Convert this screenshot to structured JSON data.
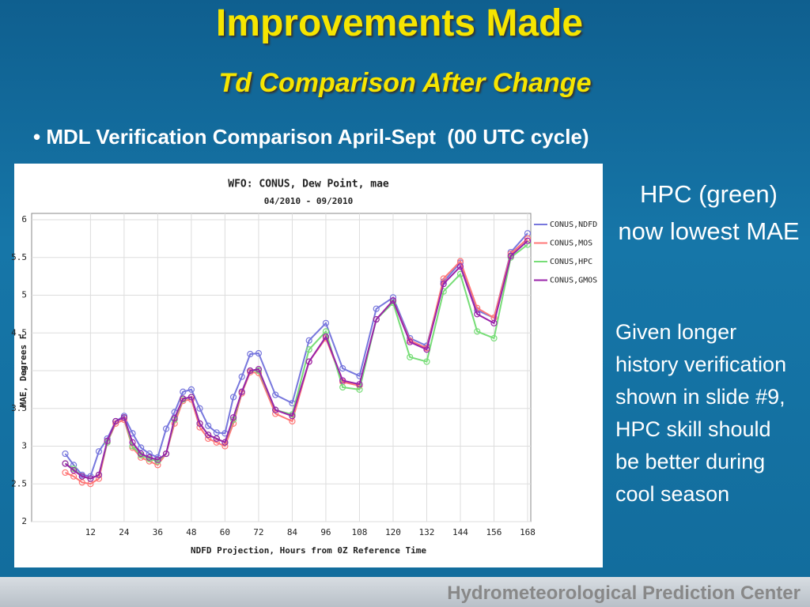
{
  "slide": {
    "title": "Improvements Made",
    "subtitle": "Td Comparison After Change",
    "bullet": "MDL Verification Comparison April-Sept  (00 UTC cycle)",
    "note1": "HPC (green) now  lowest MAE",
    "note2": "Given longer history verification shown in slide #9, HPC skill should be better during cool season",
    "footer": "Hydrometeorological Prediction Center"
  },
  "chart_data": {
    "type": "line",
    "title": "WFO: CONUS, Dew Point, mae",
    "subtitle": "04/2010 - 09/2010",
    "x_label": "NDFD Projection, Hours from 0Z Reference Time",
    "y_label": "MAE, Degrees F",
    "x": [
      3,
      6,
      9,
      12,
      15,
      18,
      21,
      24,
      27,
      30,
      33,
      36,
      39,
      42,
      45,
      48,
      51,
      54,
      57,
      60,
      63,
      66,
      69,
      72,
      78,
      84,
      90,
      96,
      102,
      108,
      114,
      120,
      126,
      132,
      138,
      144,
      150,
      156,
      162,
      168
    ],
    "series": [
      {
        "name": "CONUS,NDFD",
        "color": "#7777dd",
        "values": [
          2.9,
          2.75,
          2.62,
          2.6,
          2.93,
          3.1,
          3.33,
          3.4,
          3.17,
          2.98,
          2.9,
          2.85,
          3.23,
          3.45,
          3.72,
          3.75,
          3.5,
          3.27,
          3.18,
          3.17,
          3.65,
          3.92,
          4.22,
          4.23,
          3.68,
          3.57,
          4.4,
          4.63,
          4.03,
          3.93,
          4.82,
          4.97,
          4.43,
          4.33,
          5.18,
          5.43,
          4.8,
          4.7,
          5.57,
          5.82
        ]
      },
      {
        "name": "CONUS,MOS",
        "color": "#ff7777",
        "values": [
          2.65,
          2.6,
          2.52,
          2.5,
          2.57,
          3.05,
          3.3,
          3.35,
          2.98,
          2.85,
          2.8,
          2.75,
          2.9,
          3.3,
          3.6,
          3.62,
          3.25,
          3.1,
          3.05,
          3.0,
          3.3,
          3.7,
          3.98,
          3.97,
          3.43,
          3.33,
          4.12,
          4.43,
          3.85,
          3.8,
          4.68,
          4.93,
          4.4,
          4.3,
          5.22,
          5.45,
          4.83,
          4.7,
          5.55,
          5.75
        ]
      },
      {
        "name": "CONUS,HPC",
        "color": "#77dd77",
        "values": [
          2.77,
          2.7,
          2.6,
          2.57,
          2.62,
          3.05,
          3.33,
          3.38,
          3.0,
          2.88,
          2.83,
          2.8,
          2.9,
          3.35,
          3.62,
          3.65,
          3.3,
          3.15,
          3.1,
          3.05,
          3.35,
          3.72,
          4.0,
          4.0,
          3.48,
          3.42,
          4.28,
          4.52,
          3.78,
          3.75,
          4.68,
          4.9,
          4.18,
          4.12,
          5.05,
          5.28,
          4.52,
          4.43,
          5.5,
          5.67
        ]
      },
      {
        "name": "CONUS,GMOS",
        "color": "#9922aa",
        "values": [
          2.77,
          2.68,
          2.6,
          2.57,
          2.62,
          3.07,
          3.33,
          3.38,
          3.05,
          2.9,
          2.85,
          2.82,
          2.9,
          3.37,
          3.63,
          3.65,
          3.3,
          3.15,
          3.1,
          3.05,
          3.38,
          3.72,
          4.0,
          4.02,
          3.48,
          3.4,
          4.12,
          4.45,
          3.87,
          3.82,
          4.68,
          4.93,
          4.38,
          4.28,
          5.15,
          5.38,
          4.75,
          4.63,
          5.52,
          5.72
        ]
      }
    ],
    "xlim": [
      -9,
      168
    ],
    "xticks": [
      12,
      24,
      36,
      48,
      60,
      72,
      84,
      96,
      108,
      120,
      132,
      144,
      156,
      168
    ],
    "ylim": [
      2,
      6
    ],
    "yticks": [
      2,
      2.5,
      3,
      3.5,
      4,
      4.5,
      5,
      5.5,
      6
    ],
    "grid": true,
    "legend": "top-right"
  }
}
